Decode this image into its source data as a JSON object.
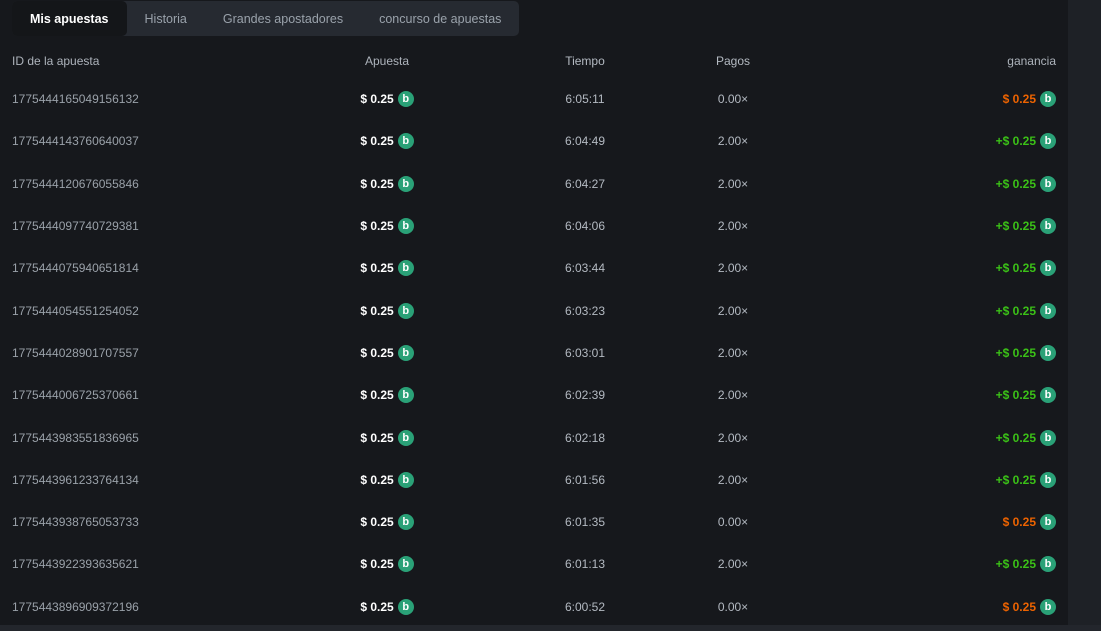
{
  "tabs": [
    {
      "label": "Mis apuestas",
      "active": true
    },
    {
      "label": "Historia",
      "active": false
    },
    {
      "label": "Grandes apostadores",
      "active": false
    },
    {
      "label": "concurso de apuestas",
      "active": false
    }
  ],
  "table": {
    "columns": [
      "ID de la apuesta",
      "Apuesta",
      "Tiempo",
      "Pagos",
      "ganancia"
    ],
    "rows": [
      {
        "id": "1775444165049156132",
        "bet": "$ 0.25",
        "time": "6:05:11",
        "payout": "0.00×",
        "profit": "$ 0.25",
        "result": "loss"
      },
      {
        "id": "1775444143760640037",
        "bet": "$ 0.25",
        "time": "6:04:49",
        "payout": "2.00×",
        "profit": "+$ 0.25",
        "result": "win"
      },
      {
        "id": "1775444120676055846",
        "bet": "$ 0.25",
        "time": "6:04:27",
        "payout": "2.00×",
        "profit": "+$ 0.25",
        "result": "win"
      },
      {
        "id": "1775444097740729381",
        "bet": "$ 0.25",
        "time": "6:04:06",
        "payout": "2.00×",
        "profit": "+$ 0.25",
        "result": "win"
      },
      {
        "id": "1775444075940651814",
        "bet": "$ 0.25",
        "time": "6:03:44",
        "payout": "2.00×",
        "profit": "+$ 0.25",
        "result": "win"
      },
      {
        "id": "1775444054551254052",
        "bet": "$ 0.25",
        "time": "6:03:23",
        "payout": "2.00×",
        "profit": "+$ 0.25",
        "result": "win"
      },
      {
        "id": "1775444028901707557",
        "bet": "$ 0.25",
        "time": "6:03:01",
        "payout": "2.00×",
        "profit": "+$ 0.25",
        "result": "win"
      },
      {
        "id": "1775444006725370661",
        "bet": "$ 0.25",
        "time": "6:02:39",
        "payout": "2.00×",
        "profit": "+$ 0.25",
        "result": "win"
      },
      {
        "id": "1775443983551836965",
        "bet": "$ 0.25",
        "time": "6:02:18",
        "payout": "2.00×",
        "profit": "+$ 0.25",
        "result": "win"
      },
      {
        "id": "1775443961233764134",
        "bet": "$ 0.25",
        "time": "6:01:56",
        "payout": "2.00×",
        "profit": "+$ 0.25",
        "result": "win"
      },
      {
        "id": "1775443938765053733",
        "bet": "$ 0.25",
        "time": "6:01:35",
        "payout": "0.00×",
        "profit": "$ 0.25",
        "result": "loss"
      },
      {
        "id": "1775443922393635621",
        "bet": "$ 0.25",
        "time": "6:01:13",
        "payout": "2.00×",
        "profit": "+$ 0.25",
        "result": "win"
      },
      {
        "id": "1775443896909372196",
        "bet": "$ 0.25",
        "time": "6:00:52",
        "payout": "0.00×",
        "profit": "$ 0.25",
        "result": "loss"
      }
    ]
  },
  "icons": {
    "coin": "b"
  },
  "colors": {
    "win": "#3bc117",
    "loss": "#ed6300",
    "coin": "#2aa177",
    "background": "#16181c",
    "tabbar_background": "#262a31",
    "active_tab_background": "#141619"
  }
}
